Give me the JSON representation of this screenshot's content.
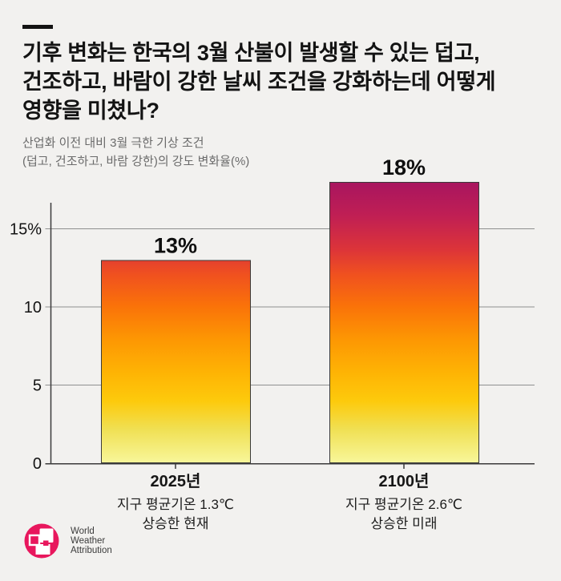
{
  "page": {
    "background": "#f2f1ef"
  },
  "header": {
    "title_lines": [
      "기후 변화는 한국의 3월 산불이 발생할 수 있는 덥고,",
      "건조하고, 바람이 강한 날씨 조건을 강화하는데 어떻게",
      "영향을 미쳤나?"
    ],
    "subtitle_lines": [
      "산업화 이전 대비 3월 극한 기상 조건",
      "(덥고, 건조하고, 바람 강한)의 강도 변화율(%)"
    ]
  },
  "chart_data": {
    "type": "bar",
    "title": "기후 변화는 한국의 3월 산불이 발생할 수 있는 덥고, 건조하고, 바람이 강한 날씨 조건을 강화하는데 어떻게 영향을 미쳤나?",
    "subtitle": "산업화 이전 대비 3월 극한 기상 조건 (덥고, 건조하고, 바람 강한)의 강도 변화율(%)",
    "unit": "%",
    "values": [
      13,
      18
    ],
    "bar_labels": [
      "13%",
      "18%"
    ],
    "categories": [
      [
        "2025년",
        "지구 평균기온 1.3℃",
        "상승한 현재"
      ],
      [
        "2100년",
        "지구 평균기온 2.6℃",
        "상승한 미래"
      ]
    ],
    "yticks": [
      {
        "value": 0,
        "label": "0"
      },
      {
        "value": 5,
        "label": "5"
      },
      {
        "value": 10,
        "label": "10"
      },
      {
        "value": 15,
        "label": "15%"
      }
    ],
    "ylim": [
      0,
      16.7
    ],
    "grid": true,
    "legend_position": "none",
    "colors": {
      "axis": "#3a3a3a",
      "grid": "#8f8f8f",
      "bar_border": "#3a3a3a",
      "label_text": "#0f0f0f"
    },
    "bar_gradient_stops": [
      {
        "offset": "0%",
        "color": "#a8155f"
      },
      {
        "offset": "12%",
        "color": "#c01f54"
      },
      {
        "offset": "24%",
        "color": "#dc3439"
      },
      {
        "offset": "33%",
        "color": "#f0511f"
      },
      {
        "offset": "44%",
        "color": "#fa7209"
      },
      {
        "offset": "56%",
        "color": "#fd9703"
      },
      {
        "offset": "68%",
        "color": "#feb404"
      },
      {
        "offset": "78%",
        "color": "#fdca0c"
      },
      {
        "offset": "88%",
        "color": "#f0e054"
      },
      {
        "offset": "100%",
        "color": "#f8f79b"
      }
    ]
  },
  "footer": {
    "logo": {
      "color": "#e8175d",
      "lines": [
        "World",
        "Weather",
        "Attribution"
      ]
    }
  }
}
